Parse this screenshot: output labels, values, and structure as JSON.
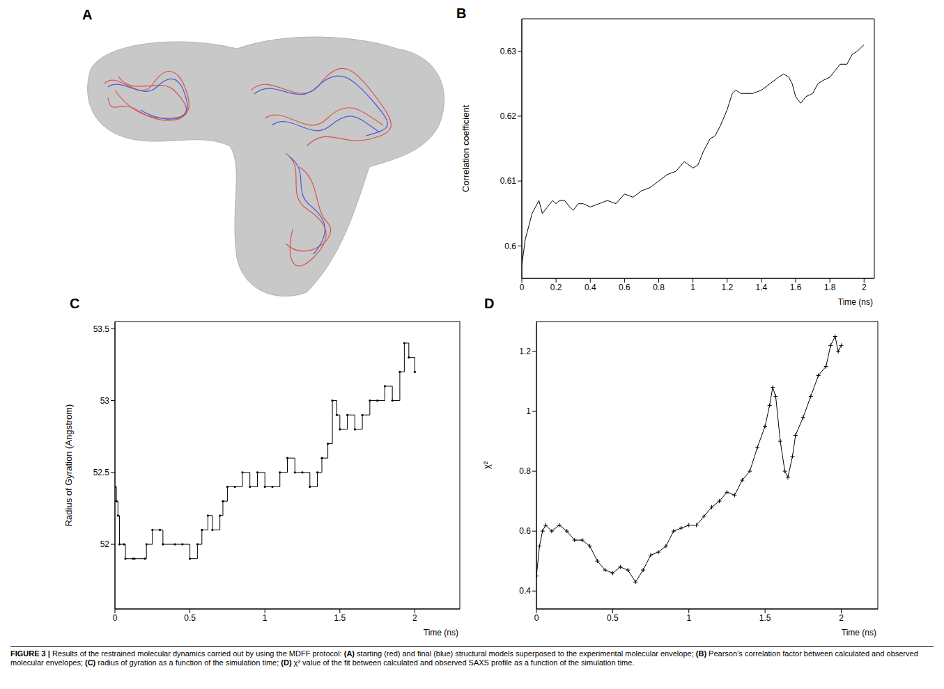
{
  "chart_data": [
    {
      "panel": "B",
      "type": "line",
      "x_label": "Time (ns)",
      "y_label": "Correlation coefficient",
      "xlim": [
        0,
        2.06
      ],
      "xticks": [
        0,
        0.2,
        0.4,
        0.6,
        0.8,
        1,
        1.2,
        1.4,
        1.6,
        1.8,
        2
      ],
      "ylim": [
        0.595,
        0.635
      ],
      "yticks": [
        0.6,
        0.61,
        0.62,
        0.63
      ],
      "grid": false,
      "color": "#000000",
      "marker": "none",
      "line_style": "solid",
      "x": [
        0,
        0.02,
        0.04,
        0.06,
        0.08,
        0.1,
        0.12,
        0.15,
        0.18,
        0.2,
        0.22,
        0.25,
        0.28,
        0.3,
        0.33,
        0.36,
        0.4,
        0.45,
        0.5,
        0.55,
        0.6,
        0.65,
        0.7,
        0.75,
        0.8,
        0.85,
        0.9,
        0.95,
        1,
        1.03,
        1.06,
        1.1,
        1.13,
        1.16,
        1.2,
        1.23,
        1.25,
        1.28,
        1.3,
        1.35,
        1.4,
        1.45,
        1.5,
        1.53,
        1.56,
        1.58,
        1.6,
        1.63,
        1.66,
        1.7,
        1.73,
        1.76,
        1.8,
        1.83,
        1.86,
        1.9,
        1.93,
        1.96,
        1.98,
        2
      ],
      "values": [
        0.597,
        0.601,
        0.603,
        0.605,
        0.606,
        0.607,
        0.605,
        0.606,
        0.607,
        0.6065,
        0.607,
        0.607,
        0.606,
        0.6055,
        0.6065,
        0.6065,
        0.606,
        0.6065,
        0.607,
        0.6065,
        0.608,
        0.6075,
        0.6085,
        0.609,
        0.61,
        0.611,
        0.6115,
        0.613,
        0.612,
        0.6125,
        0.6145,
        0.6165,
        0.617,
        0.6185,
        0.621,
        0.6235,
        0.624,
        0.6235,
        0.6235,
        0.6235,
        0.624,
        0.625,
        0.626,
        0.6265,
        0.626,
        0.625,
        0.623,
        0.622,
        0.623,
        0.6235,
        0.625,
        0.6255,
        0.626,
        0.627,
        0.628,
        0.628,
        0.6295,
        0.63,
        0.6305,
        0.631
      ]
    },
    {
      "panel": "C",
      "type": "line",
      "x_label": "Time (ns)",
      "y_label": "Radius of Gyration (Angstrom)",
      "xlim": [
        0,
        2.3
      ],
      "xticks": [
        0,
        0.5,
        1,
        1.5,
        2
      ],
      "ylim": [
        51.55,
        53.55
      ],
      "yticks": [
        52,
        52.5,
        53,
        53.5
      ],
      "grid": false,
      "color": "#000000",
      "marker": "circle",
      "line_style": "step",
      "x": [
        0,
        0.01,
        0.02,
        0.03,
        0.06,
        0.07,
        0.12,
        0.13,
        0.2,
        0.21,
        0.25,
        0.3,
        0.32,
        0.4,
        0.45,
        0.5,
        0.55,
        0.58,
        0.62,
        0.65,
        0.7,
        0.72,
        0.75,
        0.8,
        0.85,
        0.9,
        0.95,
        1,
        1.05,
        1.1,
        1.15,
        1.2,
        1.25,
        1.3,
        1.35,
        1.38,
        1.42,
        1.45,
        1.48,
        1.5,
        1.55,
        1.6,
        1.65,
        1.7,
        1.75,
        1.8,
        1.85,
        1.9,
        1.93,
        1.96,
        2
      ],
      "values": [
        52.4,
        52.3,
        52.2,
        52,
        52,
        51.9,
        51.9,
        51.9,
        51.9,
        52,
        52.1,
        52.1,
        52,
        52,
        52,
        51.9,
        52,
        52.1,
        52.2,
        52.1,
        52.2,
        52.3,
        52.4,
        52.4,
        52.5,
        52.4,
        52.5,
        52.4,
        52.4,
        52.5,
        52.6,
        52.5,
        52.5,
        52.4,
        52.5,
        52.6,
        52.7,
        53,
        52.9,
        52.8,
        52.9,
        52.8,
        52.9,
        53,
        53,
        53.1,
        53,
        53.2,
        53.4,
        53.3,
        53.2
      ]
    },
    {
      "panel": "D",
      "type": "line",
      "x_label": "Time (ns)",
      "y_label": "χ²",
      "xlim": [
        0,
        2.24
      ],
      "xticks": [
        0,
        0.5,
        1,
        1.5,
        2
      ],
      "ylim": [
        0.34,
        1.3
      ],
      "yticks": [
        0.4,
        0.6,
        0.8,
        1,
        1.2
      ],
      "grid": false,
      "color": "#000000",
      "marker": "plus",
      "line_style": "solid",
      "x": [
        0,
        0.02,
        0.04,
        0.06,
        0.1,
        0.15,
        0.2,
        0.25,
        0.3,
        0.35,
        0.4,
        0.45,
        0.5,
        0.55,
        0.6,
        0.65,
        0.7,
        0.75,
        0.8,
        0.85,
        0.9,
        0.95,
        1,
        1.05,
        1.1,
        1.15,
        1.2,
        1.25,
        1.3,
        1.35,
        1.4,
        1.45,
        1.5,
        1.53,
        1.55,
        1.57,
        1.6,
        1.63,
        1.65,
        1.68,
        1.7,
        1.75,
        1.8,
        1.85,
        1.9,
        1.93,
        1.96,
        1.98,
        2
      ],
      "values": [
        0.45,
        0.55,
        0.6,
        0.62,
        0.6,
        0.62,
        0.6,
        0.57,
        0.57,
        0.55,
        0.5,
        0.47,
        0.46,
        0.48,
        0.47,
        0.43,
        0.47,
        0.52,
        0.53,
        0.55,
        0.6,
        0.61,
        0.62,
        0.62,
        0.65,
        0.68,
        0.7,
        0.73,
        0.72,
        0.77,
        0.8,
        0.88,
        0.95,
        1.02,
        1.08,
        1.05,
        0.9,
        0.8,
        0.78,
        0.85,
        0.92,
        0.98,
        1.05,
        1.12,
        1.15,
        1.22,
        1.25,
        1.2,
        1.22
      ]
    }
  ],
  "panel_a": {
    "label": "A"
  },
  "caption": [
    {
      "text": "FIGURE 3 |",
      "bold": true
    },
    {
      "text": " Results of the restrained molecular dynamics carried out by using the MDFF protocol: ",
      "bold": false
    },
    {
      "text": "(A)",
      "bold": true
    },
    {
      "text": " starting (red) and final (blue) structural models superposed to the experimental molecular envelope; ",
      "bold": false
    },
    {
      "text": "(B)",
      "bold": true
    },
    {
      "text": " Pearson’s correlation factor between calculated and observed molecular envelopes; ",
      "bold": false
    },
    {
      "text": "(C)",
      "bold": true
    },
    {
      "text": " radius of gyration as a function of the simulation time; ",
      "bold": false
    },
    {
      "text": "(D)",
      "bold": true
    },
    {
      "text": " χ² value of the fit between calculated and observed SAXS profile as a function of the simulation time.",
      "bold": false
    }
  ]
}
